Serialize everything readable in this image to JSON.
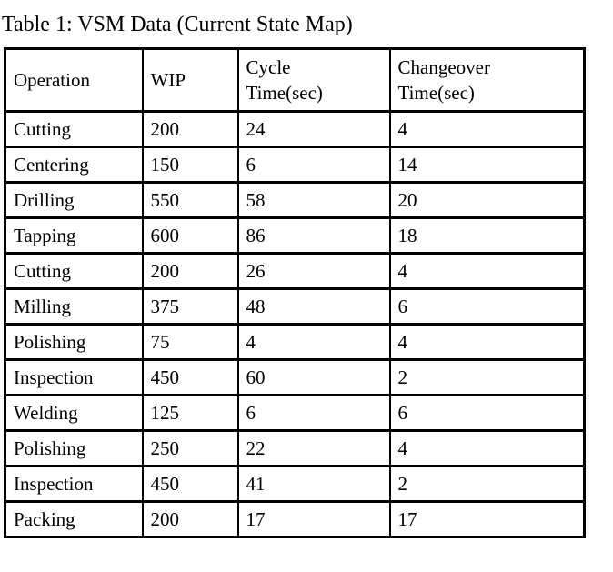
{
  "title": "Table 1: VSM Data (Current State Map)",
  "table": {
    "columns": [
      "Operation",
      "WIP",
      "Cycle\nTime(sec)",
      "Changeover\nTime(sec)"
    ],
    "column_names": [
      "operation",
      "wip",
      "cycle-time",
      "changeover-time"
    ],
    "rows": [
      [
        "Cutting",
        "200",
        "24",
        "4"
      ],
      [
        "Centering",
        "150",
        "6",
        "14"
      ],
      [
        "Drilling",
        "550",
        "58",
        "20"
      ],
      [
        "Tapping",
        "600",
        "86",
        "18"
      ],
      [
        "Cutting",
        "200",
        "26",
        "4"
      ],
      [
        "Milling",
        "375",
        "48",
        "6"
      ],
      [
        "Polishing",
        "75",
        "4",
        "4"
      ],
      [
        "Inspection",
        "450",
        "60",
        "2"
      ],
      [
        "Welding",
        "125",
        "6",
        "6"
      ],
      [
        "Polishing",
        "250",
        "22",
        "4"
      ],
      [
        "Inspection",
        "450",
        "41",
        "2"
      ],
      [
        "Packing",
        "200",
        "17",
        "17"
      ]
    ]
  },
  "colors": {
    "text": "#000000",
    "border": "#000000",
    "background": "#ffffff"
  },
  "chart_data": {
    "type": "table",
    "title": "Table 1: VSM Data (Current State Map)",
    "categories": [
      "Operation",
      "WIP",
      "Cycle Time(sec)",
      "Changeover Time(sec)"
    ],
    "series": [
      {
        "name": "WIP",
        "values": [
          200,
          150,
          550,
          600,
          200,
          375,
          75,
          450,
          125,
          250,
          450,
          200
        ]
      },
      {
        "name": "Cycle Time(sec)",
        "values": [
          24,
          6,
          58,
          86,
          26,
          48,
          4,
          60,
          6,
          22,
          41,
          17
        ]
      },
      {
        "name": "Changeover Time(sec)",
        "values": [
          4,
          14,
          20,
          18,
          4,
          6,
          4,
          2,
          6,
          4,
          2,
          17
        ]
      }
    ],
    "x": [
      "Cutting",
      "Centering",
      "Drilling",
      "Tapping",
      "Cutting",
      "Milling",
      "Polishing",
      "Inspection",
      "Welding",
      "Polishing",
      "Inspection",
      "Packing"
    ]
  }
}
